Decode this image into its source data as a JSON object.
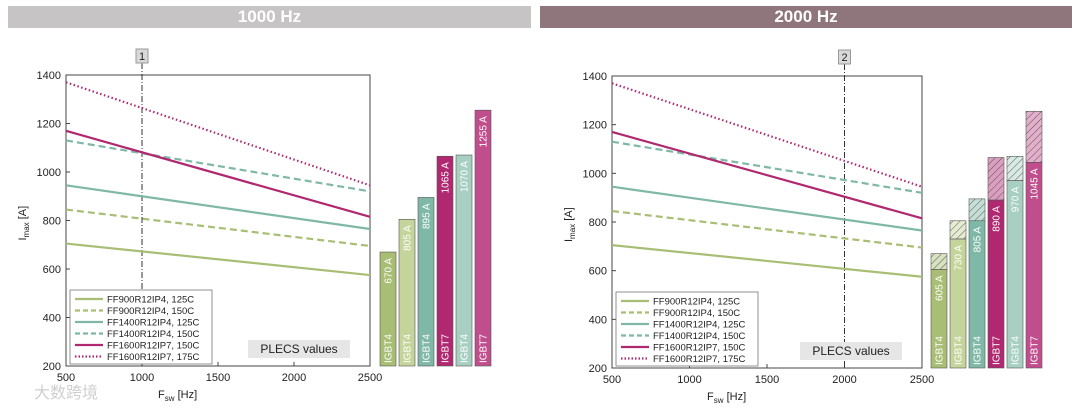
{
  "colors": {
    "header1": "#c7c4c6",
    "header2": "#8e767c",
    "ff900": "#a8be74",
    "ff900_light": "#c5d49a",
    "ff1400": "#7fb8a6",
    "ff1400_light": "#a8d0c2",
    "ff1600": "#b0286f",
    "ff1600_light": "#c04e8c",
    "plecs_bg": "#e6e6e6"
  },
  "watermark": "大数跨境",
  "chart_data": [
    {
      "type": "line",
      "header": "1000 Hz",
      "marker": {
        "label": "1",
        "x": 1000
      },
      "xlabel": "F_sw [Hz]",
      "ylabel": "I_max [A]",
      "xlim": [
        500,
        2500
      ],
      "ylim": [
        200,
        1400
      ],
      "xticks": [
        "500",
        "1000",
        "1500",
        "2000",
        "2500"
      ],
      "yticks": [
        "200",
        "400",
        "600",
        "800",
        "1000",
        "1200",
        "1400"
      ],
      "plecs_label": "PLECS values",
      "series": [
        {
          "name": "FF900R12IP4, 125C",
          "color": "ff900",
          "dash": "solid",
          "x": [
            500,
            2500
          ],
          "y": [
            705,
            575
          ]
        },
        {
          "name": "FF900R12IP4, 150C",
          "color": "ff900",
          "dash": "dashed",
          "x": [
            500,
            2500
          ],
          "y": [
            845,
            695
          ]
        },
        {
          "name": "FF1400R12IP4, 125C",
          "color": "ff1400",
          "dash": "solid",
          "x": [
            500,
            2500
          ],
          "y": [
            945,
            765
          ]
        },
        {
          "name": "FF1400R12IP4, 150C",
          "color": "ff1400",
          "dash": "dashed",
          "x": [
            500,
            2500
          ],
          "y": [
            1130,
            920
          ]
        },
        {
          "name": "FF1600R12IP7, 150C",
          "color": "ff1600",
          "dash": "solid",
          "x": [
            500,
            2500
          ],
          "y": [
            1170,
            815
          ]
        },
        {
          "name": "FF1600R12IP7, 175C",
          "color": "ff1600",
          "dash": "dotted",
          "x": [
            500,
            2500
          ],
          "y": [
            1370,
            945
          ]
        }
      ],
      "bars": [
        {
          "chip": "IGBT4",
          "value_label": "670 A",
          "value": 670,
          "color": "ff900"
        },
        {
          "chip": "IGBT4",
          "value_label": "805 A",
          "value": 805,
          "color": "ff900_light"
        },
        {
          "chip": "IGBT4",
          "value_label": "895 A",
          "value": 895,
          "color": "ff1400"
        },
        {
          "chip": "IGBT7",
          "value_label": "1065 A",
          "value": 1065,
          "color": "ff1600"
        },
        {
          "chip": "IGBT4",
          "value_label": "1070 A",
          "value": 1070,
          "color": "ff1400_light"
        },
        {
          "chip": "IGBT7",
          "value_label": "1255 A",
          "value": 1255,
          "color": "ff1600_light"
        }
      ]
    },
    {
      "type": "line",
      "header": "2000 Hz",
      "marker": {
        "label": "2",
        "x": 2000
      },
      "xlabel": "F_sw [Hz]",
      "ylabel": "I_max [A]",
      "xlim": [
        500,
        2500
      ],
      "ylim": [
        200,
        1400
      ],
      "xticks": [
        "500",
        "1000",
        "1500",
        "2000",
        "2500"
      ],
      "yticks": [
        "200",
        "400",
        "600",
        "800",
        "1000",
        "1200",
        "1400"
      ],
      "plecs_label": "PLECS values",
      "series": [
        {
          "name": "FF900R12IP4, 125C",
          "color": "ff900",
          "dash": "solid",
          "x": [
            500,
            2500
          ],
          "y": [
            705,
            575
          ]
        },
        {
          "name": "FF900R12IP4, 150C",
          "color": "ff900",
          "dash": "dashed",
          "x": [
            500,
            2500
          ],
          "y": [
            845,
            695
          ]
        },
        {
          "name": "FF1400R12IP4, 125C",
          "color": "ff1400",
          "dash": "solid",
          "x": [
            500,
            2500
          ],
          "y": [
            945,
            765
          ]
        },
        {
          "name": "FF1400R12IP4, 150C",
          "color": "ff1400",
          "dash": "dashed",
          "x": [
            500,
            2500
          ],
          "y": [
            1130,
            920
          ]
        },
        {
          "name": "FF1600R12IP7, 150C",
          "color": "ff1600",
          "dash": "solid",
          "x": [
            500,
            2500
          ],
          "y": [
            1170,
            815
          ]
        },
        {
          "name": "FF1600R12IP7, 175C",
          "color": "ff1600",
          "dash": "dotted",
          "x": [
            500,
            2500
          ],
          "y": [
            1370,
            945
          ]
        }
      ],
      "bars": [
        {
          "chip": "IGBT4",
          "value_label": "605 A",
          "value": 605,
          "total": 670,
          "color": "ff900"
        },
        {
          "chip": "IGBT4",
          "value_label": "730 A",
          "value": 730,
          "total": 805,
          "color": "ff900_light"
        },
        {
          "chip": "IGBT4",
          "value_label": "805 A",
          "value": 805,
          "total": 895,
          "color": "ff1400"
        },
        {
          "chip": "IGBT7",
          "value_label": "890 A",
          "value": 890,
          "total": 1065,
          "color": "ff1600"
        },
        {
          "chip": "IGBT4",
          "value_label": "970 A",
          "value": 970,
          "total": 1070,
          "color": "ff1400_light"
        },
        {
          "chip": "IGBT7",
          "value_label": "1045 A",
          "value": 1045,
          "total": 1255,
          "color": "ff1600_light"
        }
      ]
    }
  ]
}
